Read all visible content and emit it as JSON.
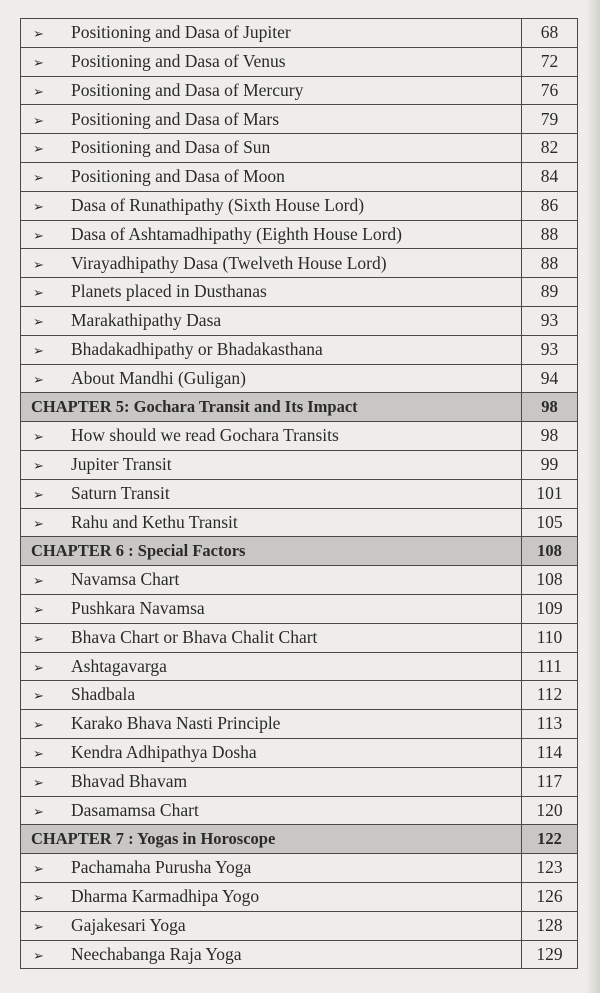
{
  "bullet_icon": "arrow-bullet-icon",
  "rows": [
    {
      "type": "item",
      "title": "Positioning and Dasa of Jupiter",
      "page": "68"
    },
    {
      "type": "item",
      "title": "Positioning and Dasa of Venus",
      "page": "72"
    },
    {
      "type": "item",
      "title": "Positioning and Dasa of Mercury",
      "page": "76"
    },
    {
      "type": "item",
      "title": "Positioning and Dasa of Mars",
      "page": "79"
    },
    {
      "type": "item",
      "title": "Positioning and Dasa of Sun",
      "page": "82"
    },
    {
      "type": "item",
      "title": "Positioning and Dasa of Moon",
      "page": "84"
    },
    {
      "type": "item",
      "title": "Dasa of Runathipathy (Sixth House Lord)",
      "page": "86"
    },
    {
      "type": "item",
      "title": "Dasa of Ashtamadhipathy (Eighth House Lord)",
      "page": "88"
    },
    {
      "type": "item",
      "title": "Virayadhipathy Dasa (Twelveth House Lord)",
      "page": "88"
    },
    {
      "type": "item",
      "title": "Planets placed in Dusthanas",
      "page": "89"
    },
    {
      "type": "item",
      "title": "Marakathipathy Dasa",
      "page": "93"
    },
    {
      "type": "item",
      "title": "Bhadakadhipathy or Bhadakasthana",
      "page": "93"
    },
    {
      "type": "item",
      "title": "About Mandhi (Guligan)",
      "page": "94"
    },
    {
      "type": "chapter",
      "title": "CHAPTER 5: Gochara Transit and Its Impact",
      "page": "98"
    },
    {
      "type": "item",
      "title": "How should we read Gochara Transits",
      "page": "98"
    },
    {
      "type": "item",
      "title": "Jupiter Transit",
      "page": "99"
    },
    {
      "type": "item",
      "title": "Saturn Transit",
      "page": "101"
    },
    {
      "type": "item",
      "title": "Rahu and Kethu Transit",
      "page": "105"
    },
    {
      "type": "chapter",
      "title": "CHAPTER 6 : Special Factors",
      "page": "108"
    },
    {
      "type": "item",
      "title": "Navamsa Chart",
      "page": "108"
    },
    {
      "type": "item",
      "title": "Pushkara Navamsa",
      "page": "109"
    },
    {
      "type": "item",
      "title": "Bhava Chart or Bhava Chalit Chart",
      "page": "110"
    },
    {
      "type": "item",
      "title": "Ashtagavarga",
      "page": "111"
    },
    {
      "type": "item",
      "title": "Shadbala",
      "page": "112"
    },
    {
      "type": "item",
      "title": "Karako Bhava Nasti Principle",
      "page": "113"
    },
    {
      "type": "item",
      "title": "Kendra Adhipathya Dosha",
      "page": "114"
    },
    {
      "type": "item",
      "title": "Bhavad Bhavam",
      "page": "117"
    },
    {
      "type": "item",
      "title": "Dasamamsa Chart",
      "page": "120"
    },
    {
      "type": "chapter",
      "title": "CHAPTER 7 : Yogas in Horoscope",
      "page": "122"
    },
    {
      "type": "item",
      "title": "Pachamaha Purusha Yoga",
      "page": "123"
    },
    {
      "type": "item",
      "title": "Dharma Karmadhipa Yogo",
      "page": "126"
    },
    {
      "type": "item",
      "title": "Gajakesari Yoga",
      "page": "128"
    },
    {
      "type": "item",
      "title": "Neechabanga Raja Yoga",
      "page": "129"
    }
  ]
}
